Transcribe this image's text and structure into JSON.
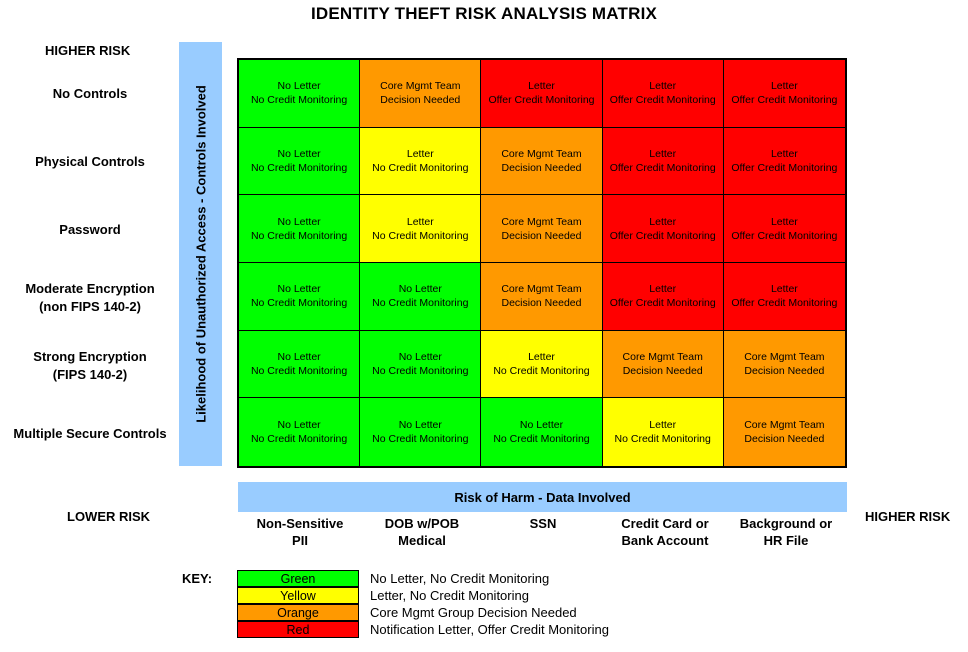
{
  "title": "IDENTITY THEFT RISK ANALYSIS MATRIX",
  "higher_risk_top": "HIGHER RISK",
  "lower_risk": "LOWER RISK",
  "higher_risk_right": "HIGHER RISK",
  "vertical_axis_label": "Likelihood of Unauthorized Access - Controls Involved",
  "horizontal_axis_label": "Risk of Harm  - Data Involved",
  "rows": [
    {
      "label_line1": "No Controls",
      "label_line2": ""
    },
    {
      "label_line1": "Physical Controls",
      "label_line2": ""
    },
    {
      "label_line1": "Password",
      "label_line2": ""
    },
    {
      "label_line1": "Moderate Encryption",
      "label_line2": "(non FIPS 140-2)"
    },
    {
      "label_line1": "Strong Encryption",
      "label_line2": "(FIPS 140-2)"
    },
    {
      "label_line1": "Multiple Secure Controls",
      "label_line2": ""
    }
  ],
  "columns": [
    {
      "line1": "Non-Sensitive",
      "line2": "PII"
    },
    {
      "line1": "DOB w/POB",
      "line2": "Medical"
    },
    {
      "line1": "SSN",
      "line2": ""
    },
    {
      "line1": "Credit Card or",
      "line2": "Bank Account"
    },
    {
      "line1": "Background or",
      "line2": "HR File"
    }
  ],
  "colors": {
    "green": "#00ff00",
    "yellow": "#ffff00",
    "orange": "#ff9900",
    "red": "#ff0000",
    "axis_bar": "#99ccff"
  },
  "cell_text": {
    "green": [
      "No Letter",
      "No Credit Monitoring"
    ],
    "yellow": [
      "Letter",
      "No Credit Monitoring"
    ],
    "orange": [
      "Core Mgmt Team",
      "Decision Needed"
    ],
    "red": [
      "Letter",
      "Offer Credit Monitoring"
    ]
  },
  "matrix": [
    [
      "green",
      "orange",
      "red",
      "red",
      "red"
    ],
    [
      "green",
      "yellow",
      "orange",
      "red",
      "red"
    ],
    [
      "green",
      "yellow",
      "orange",
      "red",
      "red"
    ],
    [
      "green",
      "green",
      "orange",
      "red",
      "red"
    ],
    [
      "green",
      "green",
      "yellow",
      "orange",
      "orange"
    ],
    [
      "green",
      "green",
      "green",
      "yellow",
      "orange"
    ]
  ],
  "key": {
    "label": "KEY:",
    "items": [
      {
        "color": "green",
        "name": "Green",
        "description": "No Letter, No Credit Monitoring"
      },
      {
        "color": "yellow",
        "name": "Yellow",
        "description": "Letter, No Credit Monitoring"
      },
      {
        "color": "orange",
        "name": "Orange",
        "description": "Core Mgmt Group Decision Needed"
      },
      {
        "color": "red",
        "name": "Red",
        "description": "Notification Letter, Offer Credit Monitoring"
      }
    ]
  }
}
